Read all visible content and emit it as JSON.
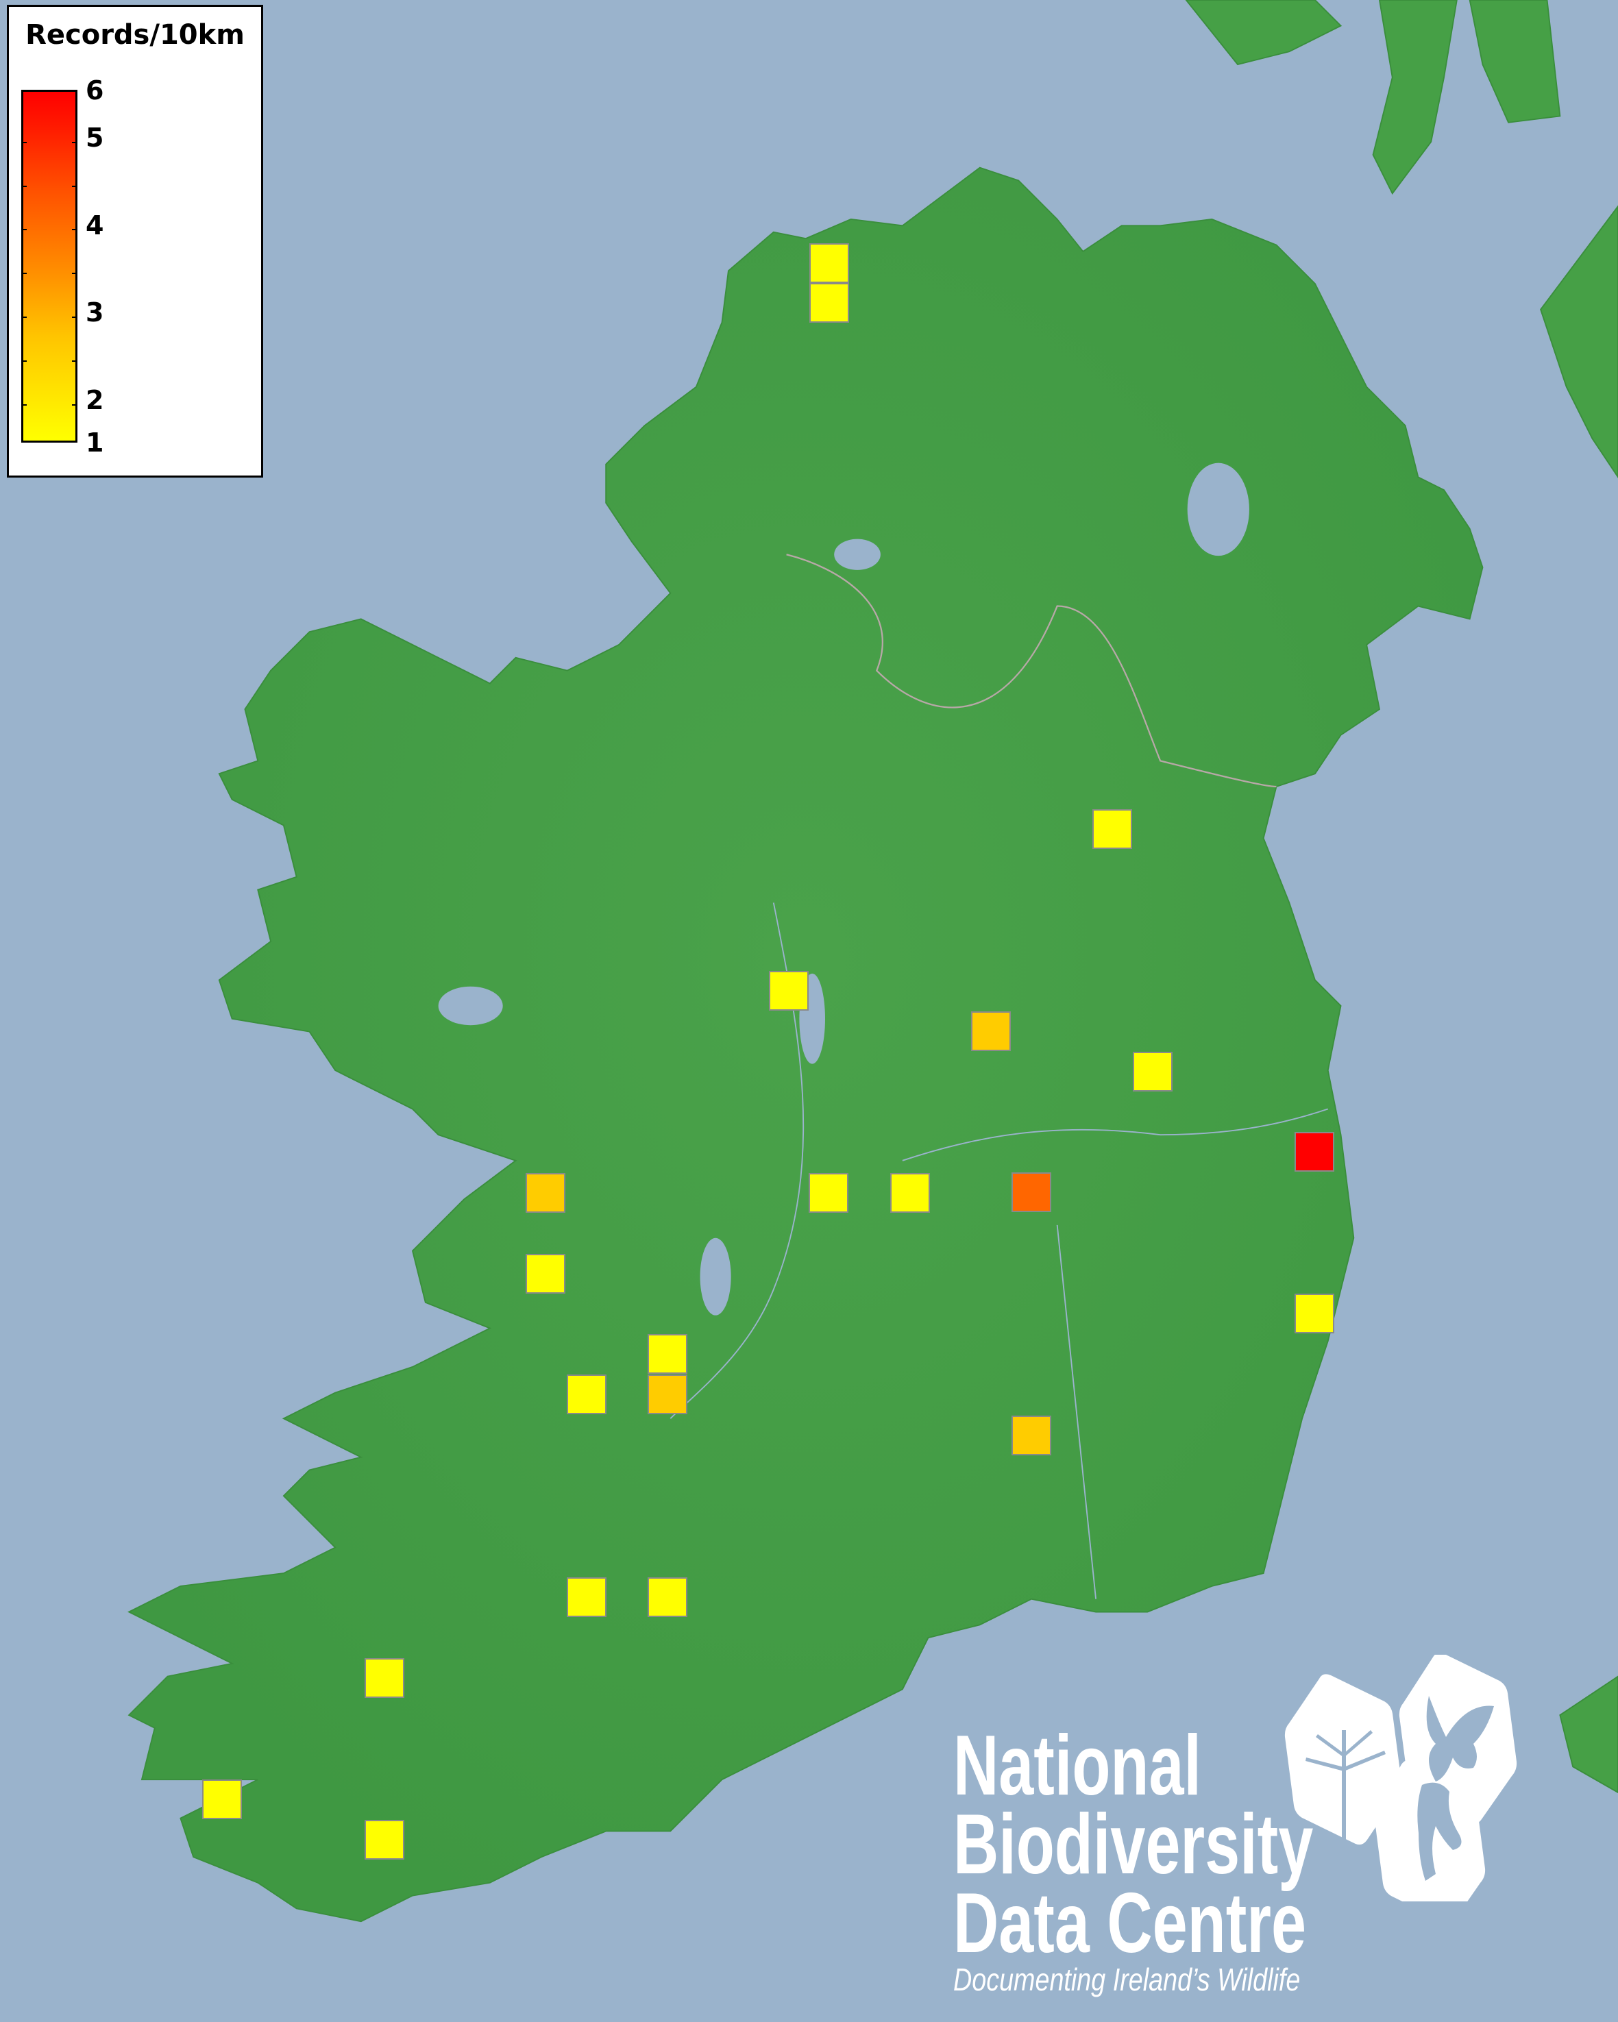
{
  "legend": {
    "title": "Records/10km",
    "ticks": [
      "6",
      "5",
      "4",
      "3",
      "2",
      "1"
    ],
    "min_color": "#FFFF00",
    "max_color": "#FF0000"
  },
  "map": {
    "sea_color": "#9AB3CC",
    "land_color": "#46A046",
    "value_colors": {
      "1": "#FFFF00",
      "2": "#FFCC00",
      "4": "#FF6600",
      "6": "#FF0000"
    },
    "records": [
      1,
      1,
      1,
      1,
      2,
      1,
      6,
      2,
      1,
      1,
      4,
      1,
      1,
      1,
      1,
      2,
      2,
      1,
      1,
      1,
      1,
      1
    ]
  },
  "logo": {
    "line1": "National",
    "line2": "Biodiversity",
    "line3": "Data Centre",
    "tagline": "Documenting Ireland’s Wildlife"
  }
}
